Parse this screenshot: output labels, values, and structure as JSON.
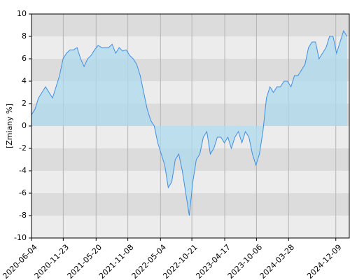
{
  "chart_data": {
    "type": "area",
    "ylabel": "[Zmiany %]",
    "xlim": [
      "2020-06-04",
      "2025-02-20"
    ],
    "xticks": [
      "2020-06-04",
      "2020-11-23",
      "2021-05-20",
      "2021-11-08",
      "2022-05-04",
      "2022-10-21",
      "2023-04-17",
      "2023-10-06",
      "2024-03-28",
      "2024-12-09"
    ],
    "ylim": [
      -10,
      10
    ],
    "yticks": [
      -10,
      -8,
      -6,
      -4,
      -2,
      0,
      2,
      4,
      6,
      8,
      10
    ],
    "grid": true,
    "series": [
      {
        "color": "#3d8fe6",
        "fill": "#add9ee",
        "x": [
          "2020-06-04",
          "2020-06-23",
          "2020-07-12",
          "2020-07-31",
          "2020-08-19",
          "2020-09-07",
          "2020-09-26",
          "2020-10-15",
          "2020-11-03",
          "2020-11-22",
          "2020-12-11",
          "2020-12-30",
          "2021-01-18",
          "2021-02-06",
          "2021-02-25",
          "2021-03-16",
          "2021-04-04",
          "2021-04-23",
          "2021-05-12",
          "2021-05-31",
          "2021-06-19",
          "2021-07-08",
          "2021-07-27",
          "2021-08-15",
          "2021-09-03",
          "2021-09-22",
          "2021-10-11",
          "2021-10-30",
          "2021-11-18",
          "2021-12-07",
          "2021-12-26",
          "2022-01-14",
          "2022-02-02",
          "2022-02-21",
          "2022-03-12",
          "2022-03-31",
          "2022-04-19",
          "2022-05-08",
          "2022-05-27",
          "2022-06-15",
          "2022-07-04",
          "2022-07-23",
          "2022-08-11",
          "2022-08-30",
          "2022-09-18",
          "2022-10-07",
          "2022-10-26",
          "2022-11-14",
          "2022-12-03",
          "2022-12-22",
          "2023-01-10",
          "2023-01-29",
          "2023-02-17",
          "2023-03-08",
          "2023-03-27",
          "2023-04-15",
          "2023-05-04",
          "2023-05-23",
          "2023-06-11",
          "2023-06-30",
          "2023-07-19",
          "2023-08-07",
          "2023-08-26",
          "2023-09-14",
          "2023-10-03",
          "2023-10-22",
          "2023-11-10",
          "2023-11-29",
          "2023-12-18",
          "2024-01-06",
          "2024-01-25",
          "2024-02-13",
          "2024-03-03",
          "2024-03-22",
          "2024-04-10",
          "2024-04-29",
          "2024-05-18",
          "2024-06-06",
          "2024-06-25",
          "2024-07-14",
          "2024-08-02",
          "2024-08-21",
          "2024-09-09",
          "2024-09-28",
          "2024-10-17",
          "2024-11-05",
          "2024-11-24",
          "2024-12-13",
          "2025-01-01",
          "2025-01-20",
          "2025-02-08"
        ],
        "values": [
          1,
          1.5,
          2.5,
          3,
          3.5,
          3,
          2.5,
          3.5,
          4.5,
          6,
          6.5,
          6.8,
          6.8,
          7,
          6,
          5.3,
          6,
          6.3,
          6.8,
          7.2,
          7,
          7,
          7,
          7.3,
          6.5,
          7,
          6.7,
          6.8,
          6.3,
          6,
          5.5,
          4.5,
          3,
          1.5,
          0.5,
          0,
          -1.5,
          -2.5,
          -3.5,
          -5.5,
          -5,
          -3,
          -2.5,
          -4,
          -6,
          -8,
          -5,
          -3,
          -2.5,
          -1,
          -0.5,
          -2.5,
          -2,
          -1,
          -1,
          -1.5,
          -1,
          -2,
          -1,
          -0.5,
          -1.5,
          -0.5,
          -1,
          -2.5,
          -3.5,
          -2.5,
          -0.5,
          2.5,
          3.5,
          3,
          3.5,
          3.5,
          4,
          4,
          3.5,
          4.5,
          4.5,
          5,
          5.5,
          7,
          7.5,
          7.5,
          6,
          6.5,
          7,
          8,
          8,
          6.5,
          7.5,
          8.5,
          8
        ]
      }
    ]
  }
}
